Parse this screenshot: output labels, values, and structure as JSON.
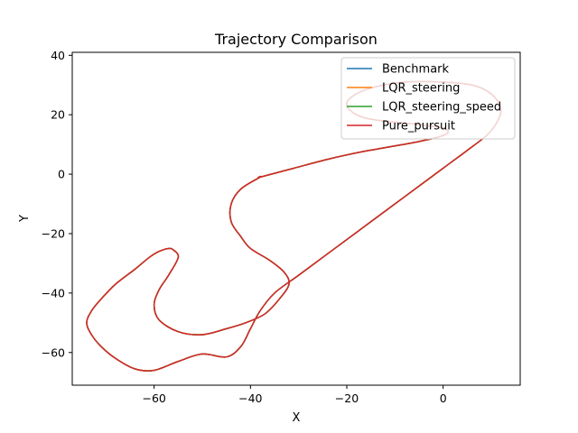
{
  "chart_data": {
    "type": "line",
    "title": "Trajectory Comparison",
    "xlabel": "X",
    "ylabel": "Y",
    "xlim": [
      -77,
      16
    ],
    "ylim": [
      -71,
      41
    ],
    "xticks": [
      -60,
      -40,
      -20,
      0
    ],
    "yticks": [
      -60,
      -40,
      -20,
      0,
      20,
      40
    ],
    "grid": false,
    "legend_position": "top-right",
    "series": [
      {
        "name": "Benchmark",
        "color": "#1f77b4"
      },
      {
        "name": "LQR_steering",
        "color": "#ff7f0e"
      },
      {
        "name": "LQR_steering_speed",
        "color": "#2ca02c"
      },
      {
        "name": "Pure_pursuit",
        "color": "#d62728"
      }
    ],
    "track": {
      "x": [
        -38,
        -31,
        -24,
        -17,
        -10,
        -5,
        -1,
        1,
        0,
        -4,
        -10,
        -15,
        -18,
        -20,
        -19,
        -15,
        -8,
        0,
        6,
        10,
        12,
        11,
        9,
        5,
        0,
        -5,
        -10,
        -15,
        -20,
        -25,
        -30,
        -35,
        -38,
        -40,
        -42,
        -45,
        -50,
        -55,
        -60,
        -64,
        -68,
        -71,
        -73,
        -74,
        -73,
        -71,
        -68,
        -64,
        -61,
        -59,
        -57,
        -56,
        -55,
        -57,
        -59,
        -60,
        -59,
        -55,
        -50,
        -45,
        -41,
        -37,
        -34,
        -32,
        -33,
        -36,
        -40,
        -42,
        -44,
        -44,
        -42,
        -38
      ],
      "y": [
        -1,
        2,
        5,
        7.5,
        9.5,
        11,
        12.5,
        14,
        15.5,
        16.5,
        17.5,
        18.5,
        20,
        23,
        26,
        29,
        31,
        31,
        30,
        27,
        22,
        17,
        13,
        8,
        2,
        -4,
        -10,
        -16,
        -22,
        -28,
        -34,
        -40,
        -46,
        -52,
        -58,
        -61.5,
        -60.5,
        -63,
        -66,
        -65.5,
        -62,
        -58,
        -54,
        -50,
        -46,
        -42,
        -37,
        -32,
        -28,
        -26,
        -25,
        -25.5,
        -28,
        -34,
        -39,
        -44,
        -49,
        -53,
        -54,
        -52,
        -50,
        -47,
        -42,
        -37,
        -33,
        -29,
        -25,
        -21,
        -16,
        -10,
        -5,
        -1
      ]
    }
  }
}
